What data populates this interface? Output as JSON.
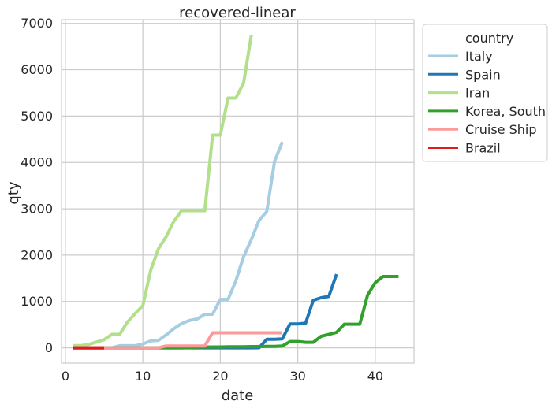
{
  "chart_data": {
    "type": "line",
    "title": "recovered-linear",
    "xlabel": "date",
    "ylabel": "qty",
    "xlim": [
      -0.5,
      45
    ],
    "ylim": [
      -330,
      7080
    ],
    "xticks": [
      0,
      10,
      20,
      30,
      40
    ],
    "yticks": [
      0,
      1000,
      2000,
      3000,
      4000,
      5000,
      6000,
      7000
    ],
    "grid": true,
    "legend": {
      "title": "country",
      "placement": "outside-top-right"
    },
    "series": [
      {
        "name": "Italy",
        "color": "#a6cee3",
        "x": [
          1,
          2,
          3,
          4,
          5,
          6,
          7,
          8,
          9,
          10,
          11,
          12,
          13,
          14,
          15,
          16,
          17,
          18,
          19,
          20,
          21,
          22,
          23,
          24,
          25,
          26,
          27,
          28
        ],
        "y": [
          0,
          0,
          0,
          0,
          0,
          2,
          45,
          46,
          46,
          83,
          149,
          160,
          276,
          414,
          523,
          589,
          622,
          724,
          724,
          1045,
          1045,
          1439,
          1966,
          2335,
          2749,
          2941,
          4025,
          4440
        ]
      },
      {
        "name": "Spain",
        "color": "#1f78b4",
        "x": [
          1,
          5,
          10,
          15,
          20,
          24,
          25,
          26,
          27,
          28,
          29,
          30,
          31,
          32,
          33,
          34,
          35
        ],
        "y": [
          0,
          0,
          0,
          0,
          0,
          0,
          2,
          183,
          183,
          193,
          517,
          517,
          530,
          1028,
          1081,
          1107,
          1588
        ]
      },
      {
        "name": "Iran",
        "color": "#b2df8a",
        "x": [
          1,
          2,
          3,
          4,
          5,
          6,
          7,
          8,
          9,
          10,
          11,
          12,
          13,
          14,
          15,
          16,
          17,
          18,
          19,
          20,
          21,
          22,
          23,
          24
        ],
        "y": [
          49,
          49,
          73,
          123,
          175,
          291,
          291,
          552,
          739,
          913,
          1669,
          2134,
          2394,
          2731,
          2959,
          2959,
          2959,
          2959,
          4590,
          4590,
          5389,
          5389,
          5710,
          6745
        ]
      },
      {
        "name": "Korea, South",
        "color": "#33a02c",
        "x": [
          1,
          5,
          10,
          15,
          18,
          19,
          20,
          21,
          22,
          23,
          24,
          25,
          26,
          27,
          28,
          29,
          30,
          31,
          32,
          33,
          34,
          35,
          36,
          37,
          38,
          39,
          40,
          41,
          42,
          43
        ],
        "y": [
          0,
          0,
          0,
          0,
          16,
          18,
          18,
          22,
          22,
          24,
          27,
          27,
          30,
          30,
          41,
          135,
          135,
          118,
          118,
          247,
          288,
          333,
          510,
          510,
          510,
          1137,
          1407,
          1540,
          1540,
          1540
        ]
      },
      {
        "name": "Cruise Ship",
        "color": "#fb9a99",
        "x": [
          1,
          5,
          10,
          12,
          13,
          14,
          15,
          16,
          17,
          18,
          19,
          20,
          21,
          22,
          23,
          24,
          25,
          26,
          27,
          28
        ],
        "y": [
          0,
          0,
          0,
          0,
          40,
          40,
          40,
          40,
          40,
          40,
          325,
          325,
          325,
          325,
          325,
          325,
          325,
          325,
          325,
          325
        ]
      },
      {
        "name": "Brazil",
        "color": "#e31a1c",
        "x": [
          1,
          2,
          3,
          4,
          5
        ],
        "y": [
          0,
          0,
          0,
          0,
          0
        ]
      }
    ]
  }
}
